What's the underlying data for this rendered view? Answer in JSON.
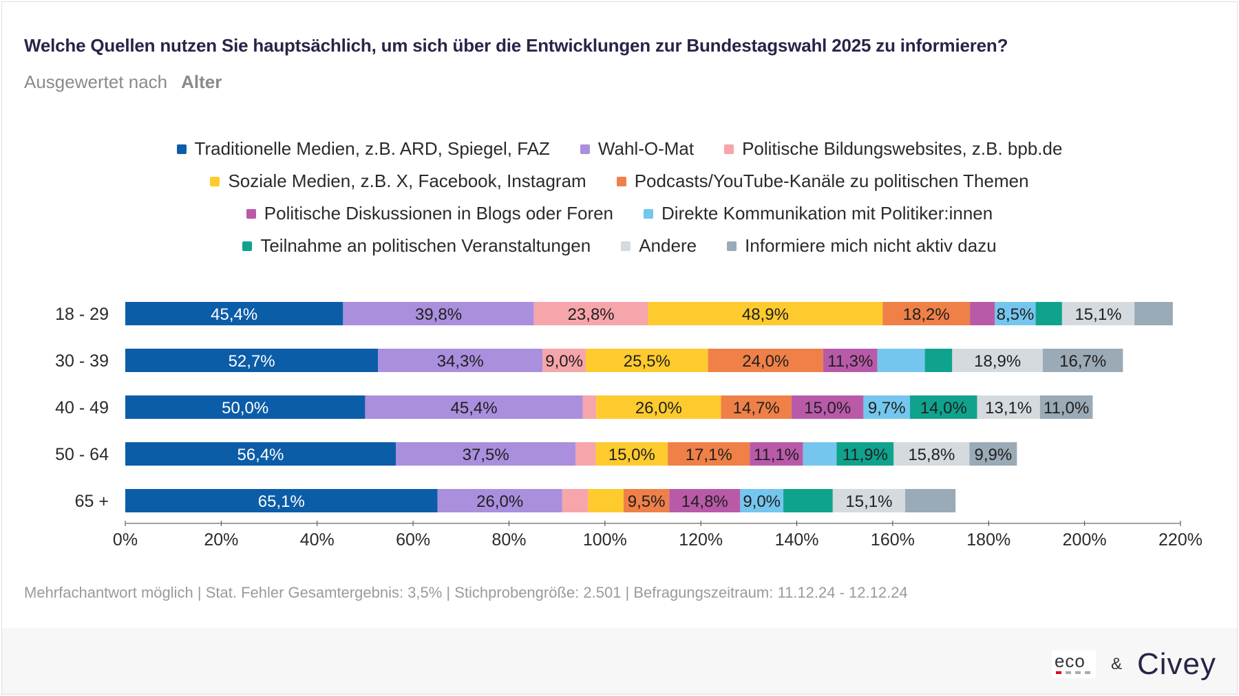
{
  "title": "Welche Quellen nutzen Sie hauptsächlich, um sich über die Entwicklungen zur Bundestagswahl 2025 zu informieren?",
  "subtitle": {
    "prefix": "Ausgewertet nach",
    "key": "Alter"
  },
  "footnote": "Mehrfachantwort möglich | Stat. Fehler Gesamtergebnis: 3,5% | Stichprobengröße: 2.501 | Befragungszeitraum: 11.12.24 - 12.12.24",
  "logos": {
    "eco": "eco",
    "ampersand": "&",
    "civey": "Civey"
  },
  "legend_rows": [
    [
      0,
      1,
      2
    ],
    [
      3,
      4
    ],
    [
      5,
      6
    ],
    [
      7,
      8,
      9
    ]
  ],
  "chart_data": {
    "type": "bar",
    "orientation": "horizontal",
    "stacked": true,
    "categories": [
      "18 - 29",
      "30 - 39",
      "40 - 49",
      "50 - 64",
      "65 +"
    ],
    "x_ticks": [
      "0%",
      "20%",
      "40%",
      "60%",
      "80%",
      "100%",
      "120%",
      "140%",
      "160%",
      "180%",
      "200%",
      "220%"
    ],
    "xlim": [
      0,
      220
    ],
    "legend_position": "top",
    "series": [
      {
        "name": "Traditionelle Medien, z.B. ARD, Spiegel, FAZ",
        "color": "#0c5da8",
        "label_color": "#ffffff",
        "values": [
          45.4,
          52.7,
          50.0,
          56.4,
          65.1
        ],
        "labels": [
          "45,4%",
          "52,7%",
          "50,0%",
          "56,4%",
          "65,1%"
        ]
      },
      {
        "name": "Wahl-O-Mat",
        "color": "#a98fdd",
        "label_color": "#1f1f1f",
        "values": [
          39.8,
          34.3,
          45.4,
          37.5,
          26.0
        ],
        "labels": [
          "39,8%",
          "34,3%",
          "45,4%",
          "37,5%",
          "26,0%"
        ]
      },
      {
        "name": "Politische Bildungswebsites, z.B. bpb.de",
        "color": "#f6a5ab",
        "label_color": "#1f1f1f",
        "values": [
          23.8,
          9.0,
          2.8,
          4.2,
          5.4
        ],
        "labels": [
          "23,8%",
          "9,0%",
          "",
          "",
          ""
        ]
      },
      {
        "name": "Soziale Medien, z.B. X, Facebook, Instagram",
        "color": "#fecb2e",
        "label_color": "#1f1f1f",
        "values": [
          48.9,
          25.5,
          26.0,
          15.0,
          7.4
        ],
        "labels": [
          "48,9%",
          "25,5%",
          "26,0%",
          "15,0%",
          ""
        ]
      },
      {
        "name": "Podcasts/YouTube-Kanäle zu politischen Themen",
        "color": "#ef8048",
        "label_color": "#1f1f1f",
        "values": [
          18.2,
          24.0,
          14.7,
          17.1,
          9.5
        ],
        "labels": [
          "18,2%",
          "24,0%",
          "14,7%",
          "17,1%",
          "9,5%"
        ]
      },
      {
        "name": "Politische Diskussionen in Blogs oder Foren",
        "color": "#b95aa9",
        "label_color": "#1f1f1f",
        "values": [
          5.2,
          11.3,
          15.0,
          11.1,
          14.8
        ],
        "labels": [
          "",
          "11,3%",
          "15,0%",
          "11,1%",
          "14,8%"
        ]
      },
      {
        "name": "Direkte Kommunikation mit Politiker:innen",
        "color": "#75c6ee",
        "label_color": "#1f1f1f",
        "values": [
          8.5,
          9.9,
          9.7,
          7.0,
          9.0
        ],
        "labels": [
          "8,5%",
          "",
          "9,7%",
          "",
          "9,0%"
        ]
      },
      {
        "name": "Teilnahme an politischen Veranstaltungen",
        "color": "#0fa38d",
        "label_color": "#1f1f1f",
        "values": [
          5.5,
          5.7,
          14.0,
          11.9,
          10.3
        ],
        "labels": [
          "",
          "",
          "14,0%",
          "11,9%",
          ""
        ]
      },
      {
        "name": "Andere",
        "color": "#d4dade",
        "label_color": "#1f1f1f",
        "values": [
          15.1,
          18.9,
          13.1,
          15.8,
          15.1
        ],
        "labels": [
          "15,1%",
          "18,9%",
          "13,1%",
          "15,8%",
          "15,1%"
        ]
      },
      {
        "name": "Informiere mich nicht aktiv dazu",
        "color": "#9aaab6",
        "label_color": "#1f1f1f",
        "values": [
          8.0,
          16.7,
          11.0,
          9.9,
          10.5
        ],
        "labels": [
          "",
          "16,7%",
          "11,0%",
          "9,9%",
          ""
        ]
      }
    ]
  }
}
